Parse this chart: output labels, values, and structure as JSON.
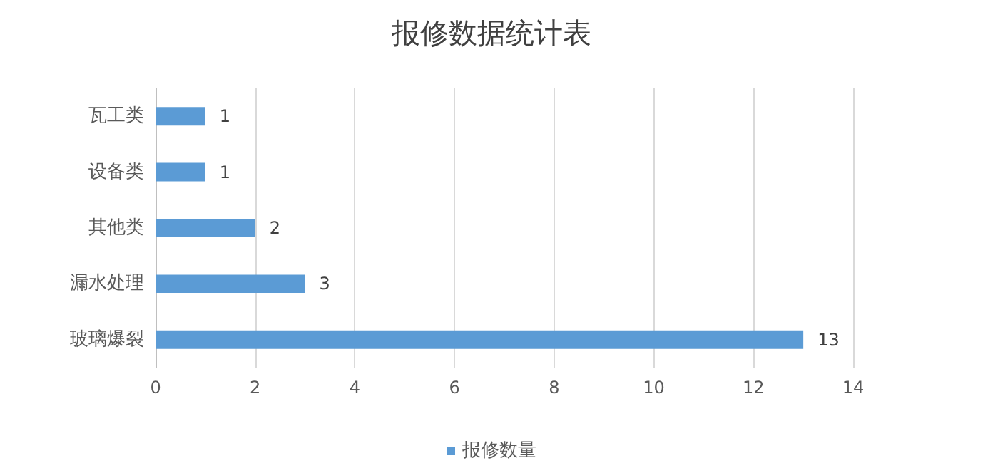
{
  "chart_data": {
    "type": "bar",
    "title": "报修数据统计表",
    "orientation": "horizontal",
    "categories": [
      "瓦工类",
      "设备类",
      "其他类",
      "漏水处理",
      "玻璃爆裂"
    ],
    "series": [
      {
        "name": "报修数量",
        "color": "#5b9bd5",
        "values": [
          1,
          1,
          2,
          3,
          13
        ]
      }
    ],
    "xlim": [
      0,
      14
    ],
    "xticks": [
      0,
      2,
      4,
      6,
      8,
      10,
      12,
      14
    ],
    "grid": "x",
    "legend": "bottom",
    "data_labels": true
  }
}
